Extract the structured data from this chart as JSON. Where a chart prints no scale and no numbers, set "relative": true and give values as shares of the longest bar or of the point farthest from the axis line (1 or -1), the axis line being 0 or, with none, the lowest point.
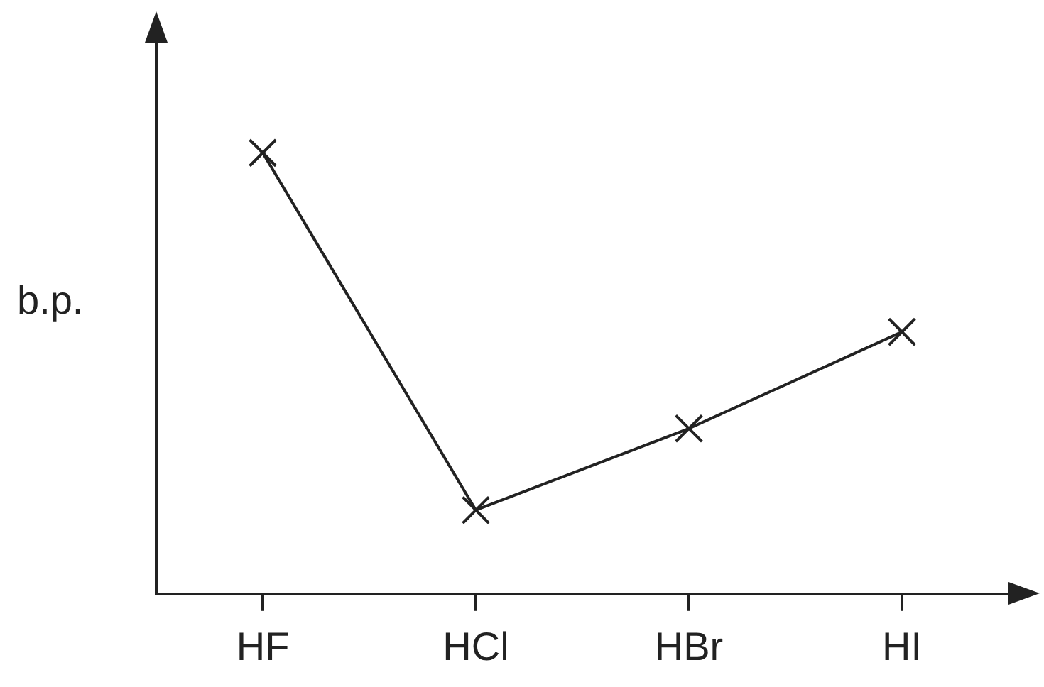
{
  "chart_data": {
    "type": "line",
    "relative": true,
    "ylabel": "b.p.",
    "categories": [
      "HF",
      "HCl",
      "HBr",
      "HI"
    ],
    "series": [
      {
        "color": "#222222",
        "values": [
          1,
          0.19,
          0.375,
          0.594
        ]
      }
    ],
    "marker": "cross",
    "line_style": "solid",
    "grid": false,
    "legend": false
  }
}
